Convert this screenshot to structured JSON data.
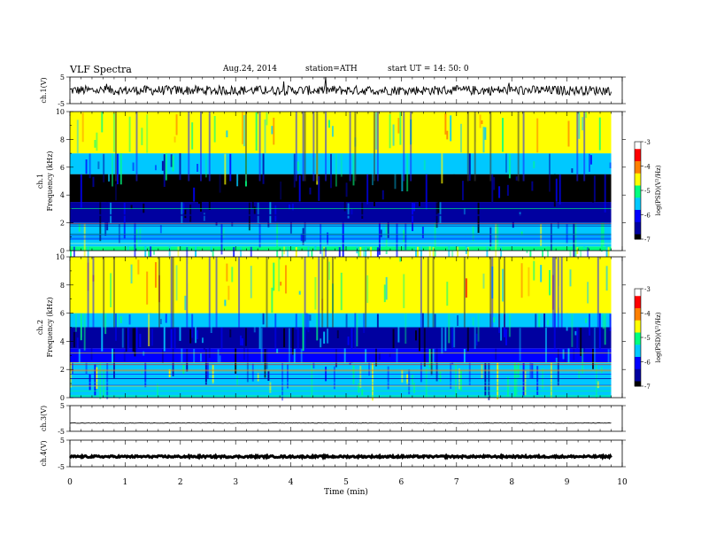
{
  "header": {
    "title": "VLF  Spectra",
    "date": "Aug.24, 2014",
    "station": "station=ATH",
    "start": "start  UT  =   14: 50: 0"
  },
  "chart_data": [
    {
      "type": "line",
      "title": "",
      "ylabel": "ch.1(V)",
      "xlim": [
        0,
        10
      ],
      "ylim": [
        -5,
        5
      ],
      "yticks": [
        "5",
        "-5"
      ],
      "x_end_min": 9.8,
      "series": [
        {
          "mean_v": 0,
          "noise_amplitude_v": 1.8
        }
      ]
    },
    {
      "type": "heatmap",
      "ylabel": "ch.1",
      "ylabel2": "Frequency  (kHz)",
      "xlim": [
        0,
        10
      ],
      "ylim": [
        0,
        10
      ],
      "yticks": [
        "0",
        "2",
        "4",
        "6",
        "8",
        "10"
      ],
      "x_end_min": 9.8,
      "bands_khz_logpsd": [
        [
          0,
          0.3,
          -5.2
        ],
        [
          0.3,
          2.0,
          -5.6
        ],
        [
          2.0,
          3.5,
          -6.4
        ],
        [
          3.5,
          5.5,
          -6.9
        ],
        [
          5.5,
          7.0,
          -5.6
        ],
        [
          7.0,
          10.0,
          -4.6
        ]
      ],
      "colorbar": {
        "label": "log(PSD)(V²/Hz)",
        "min": -7,
        "max": -3,
        "ticks": [
          "-3",
          "-4",
          "-5",
          "-6",
          "-7"
        ]
      }
    },
    {
      "type": "heatmap",
      "ylabel": "ch.2",
      "ylabel2": "Frequency  (kHz)",
      "xlim": [
        0,
        10
      ],
      "ylim": [
        0,
        10
      ],
      "yticks": [
        "0",
        "2",
        "4",
        "6",
        "8",
        "10"
      ],
      "x_end_min": 9.8,
      "bands_khz_logpsd": [
        [
          0,
          2.5,
          -5.4
        ],
        [
          2.5,
          3.5,
          -6.1
        ],
        [
          3.5,
          5.0,
          -6.3
        ],
        [
          5.0,
          6.0,
          -5.6
        ],
        [
          6.0,
          10.0,
          -4.6
        ]
      ],
      "colorbar": {
        "label": "log(PSD)(V²/Hz)",
        "min": -7,
        "max": -3,
        "ticks": [
          "-3",
          "-4",
          "-5",
          "-6",
          "-7"
        ]
      }
    },
    {
      "type": "line",
      "ylabel": "ch.3(V)",
      "xlim": [
        0,
        10
      ],
      "ylim": [
        -5,
        5
      ],
      "yticks": [
        "5",
        "-5"
      ],
      "x_end_min": 9.8,
      "series": [
        {
          "mean_v": -1.8,
          "noise_amplitude_v": 0.08
        }
      ]
    },
    {
      "type": "line",
      "ylabel": "ch.4(V)",
      "xlim": [
        0,
        10
      ],
      "ylim": [
        -5,
        5
      ],
      "yticks": [
        "5",
        "-5"
      ],
      "x_end_min": 9.8,
      "series": [
        {
          "mean_v": -1.2,
          "noise_amplitude_v": 0.35
        }
      ]
    }
  ],
  "x_axis": {
    "label": "Time  (min)",
    "ticks": [
      "0",
      "1",
      "2",
      "3",
      "4",
      "5",
      "6",
      "7",
      "8",
      "9",
      "10"
    ]
  },
  "colormap": [
    "#000000",
    "#0000a0",
    "#0000ff",
    "#00c8ff",
    "#00ff80",
    "#ffff00",
    "#ff8000",
    "#ff0000",
    "#ffffff"
  ]
}
